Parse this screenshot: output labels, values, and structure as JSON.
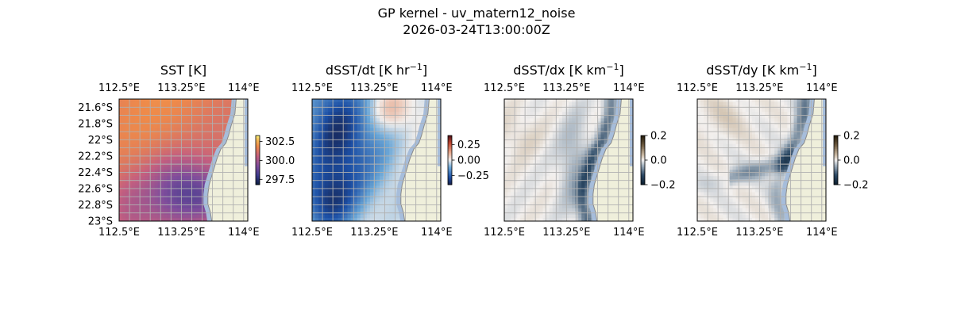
{
  "figure": {
    "title_line1": "GP kernel - uv_matern12_noise",
    "title_line2": "2026-03-24T13:00:00Z"
  },
  "chart_data": [
    {
      "type": "heatmap",
      "title": "SST [K]",
      "title_main": "SST [K]",
      "title_sup": "",
      "title_tail": "",
      "colormap": "thermal",
      "colorbar_range": [
        296.8,
        303.3
      ],
      "colorbar_ticks": [
        297.5,
        300.0,
        302.5
      ],
      "colorbar_tick_labels": [
        "297.5",
        "300.0",
        "302.5"
      ],
      "x_tick_labels_top": [
        "112.5°E",
        "113.25°E",
        "114°E"
      ],
      "x_tick_labels_bottom": [
        "112.5°E",
        "113.25°E",
        "114°E"
      ],
      "y_tick_labels": [
        "21.6°S",
        "21.8°S",
        "22°S",
        "22.2°S",
        "22.4°S",
        "22.6°S",
        "22.8°S",
        "23°S"
      ],
      "show_y_labels": true,
      "lon_range": [
        112.5,
        114.05
      ],
      "lat_range": [
        -23.0,
        -21.5
      ],
      "grid": true
    },
    {
      "type": "heatmap",
      "title": "dSST/dt [K hr−1]",
      "title_main": "dSST/dt [K hr",
      "title_sup": "−1",
      "title_tail": "]",
      "colormap": "balance",
      "colorbar_range": [
        -0.4,
        0.4
      ],
      "colorbar_ticks": [
        -0.25,
        0.0,
        0.25
      ],
      "colorbar_tick_labels": [
        "−0.25",
        "0.00",
        "0.25"
      ],
      "x_tick_labels_top": [
        "112.5°E",
        "113.25°E",
        "114°E"
      ],
      "x_tick_labels_bottom": [
        "112.5°E",
        "113.25°E",
        "114°E"
      ],
      "y_tick_labels": [],
      "show_y_labels": false,
      "lon_range": [
        112.5,
        114.05
      ],
      "lat_range": [
        -23.0,
        -21.5
      ],
      "grid": true
    },
    {
      "type": "heatmap",
      "title": "dSST/dx [K km−1]",
      "title_main": "dSST/dx [K km",
      "title_sup": "−1",
      "title_tail": "]",
      "colormap": "diff",
      "colorbar_range": [
        -0.2,
        0.2
      ],
      "colorbar_ticks": [
        -0.2,
        0.0,
        0.2
      ],
      "colorbar_tick_labels": [
        "−0.2",
        "0.0",
        "0.2"
      ],
      "x_tick_labels_top": [
        "112.5°E",
        "113.25°E",
        "114°E"
      ],
      "x_tick_labels_bottom": [
        "112.5°E",
        "113.25°E",
        "114°E"
      ],
      "y_tick_labels": [],
      "show_y_labels": false,
      "lon_range": [
        112.5,
        114.05
      ],
      "lat_range": [
        -23.0,
        -21.5
      ],
      "grid": true
    },
    {
      "type": "heatmap",
      "title": "dSST/dy [K km−1]",
      "title_main": "dSST/dy [K km",
      "title_sup": "−1",
      "title_tail": "]",
      "colormap": "diff",
      "colorbar_range": [
        -0.2,
        0.2
      ],
      "colorbar_ticks": [
        -0.2,
        0.0,
        0.2
      ],
      "colorbar_tick_labels": [
        "−0.2",
        "0.0",
        "0.2"
      ],
      "x_tick_labels_top": [
        "112.5°E",
        "113.25°E",
        "114°E"
      ],
      "x_tick_labels_bottom": [
        "112.5°E",
        "113.25°E",
        "114°E"
      ],
      "y_tick_labels": [],
      "show_y_labels": false,
      "lon_range": [
        112.5,
        114.05
      ],
      "lat_range": [
        -23.0,
        -21.5
      ],
      "grid": true
    }
  ],
  "colors": {
    "land": "#efefdb",
    "ocean_edge": "#a6bddb",
    "coastline": "#8a8a8a",
    "gridline": "#b0b0b0"
  }
}
